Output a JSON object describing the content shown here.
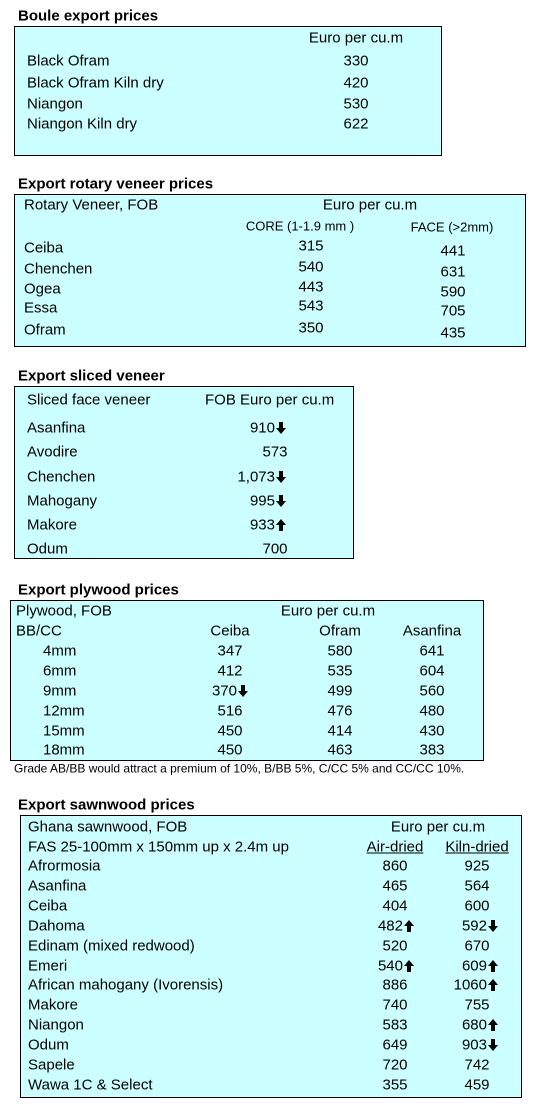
{
  "boule_export": {
    "title": "Boule export prices",
    "header": "Euro per cu.m",
    "rows": [
      [
        "Black Ofram",
        "330"
      ],
      [
        "Black Ofram  Kiln dry",
        "420"
      ],
      [
        "Niangon",
        "530"
      ],
      [
        "Niangon Kiln dry",
        "622"
      ]
    ]
  },
  "rotary_veneer": {
    "title": "Export rotary veneer prices",
    "header": [
      "Rotary Veneer,  FOB",
      "Euro  per cu.m"
    ],
    "subheader": [
      "CORE (1-1.9 mm )",
      "FACE (>2mm)"
    ],
    "rows": [
      [
        "Ceiba",
        "315",
        "441"
      ],
      [
        "Chenchen",
        "540",
        "631"
      ],
      [
        "Ogea",
        "443",
        "590"
      ],
      [
        "Essa",
        "543",
        "705"
      ],
      [
        "Ofram",
        "350",
        "435"
      ]
    ]
  },
  "sliced_veneer": {
    "title": "Export sliced veneer",
    "header": [
      "Sliced face veneer",
      "FOB Euro per cu.m"
    ],
    "rows": [
      [
        "Asanfina",
        "910"
      ],
      [
        "Avodire",
        "573"
      ],
      [
        "Chenchen",
        "1,073"
      ],
      [
        "Mahogany",
        "995"
      ],
      [
        "Makore",
        "933"
      ],
      [
        "Odum",
        "700"
      ]
    ]
  },
  "plywood": {
    "title": "Export plywood prices",
    "header": [
      "Plywood, FOB",
      "Euro per cu.m"
    ],
    "subheader": [
      "BB/CC",
      "Ceiba",
      "Ofram",
      "Asanfina"
    ],
    "rows": [
      [
        "4mm",
        "347",
        "580",
        "641"
      ],
      [
        "6mm",
        "412",
        "535",
        "604"
      ],
      [
        "9mm",
        "370",
        "499",
        "560"
      ],
      [
        "12mm",
        "516",
        "476",
        "480"
      ],
      [
        "15mm",
        "450",
        "414",
        "430"
      ],
      [
        "18mm",
        "450",
        "463",
        "383"
      ]
    ],
    "note": "Grade AB/BB would attract a premium of 10%, B/BB 5%, C/CC 5% and CC/CC 10%."
  },
  "sawnwood": {
    "title": "Export sawnwood prices",
    "header": [
      "Ghana sawnwood, FOB",
      "Euro per cu.m"
    ],
    "subheader": [
      "FAS 25-100mm x 150mm up x 2.4m up",
      "Air-dried",
      "Kiln-dried"
    ],
    "rows": [
      [
        "Afrormosia",
        "860",
        "925"
      ],
      [
        "Asanfina",
        "465",
        "564"
      ],
      [
        "Ceiba",
        "404",
        "600"
      ],
      [
        "Dahoma",
        "482",
        "592"
      ],
      [
        "Edinam (mixed redwood)",
        "520",
        "670"
      ],
      [
        "Emeri",
        "540",
        "609"
      ],
      [
        "African mahogany (Ivorensis)",
        "886",
        "1060"
      ],
      [
        "Makore",
        "740",
        "755"
      ],
      [
        "Niangon",
        "583",
        "680"
      ],
      [
        "Odum",
        "649",
        "903"
      ],
      [
        "Sapele",
        "720",
        "742"
      ],
      [
        "Wawa 1C & Select",
        "355",
        "459"
      ]
    ]
  }
}
